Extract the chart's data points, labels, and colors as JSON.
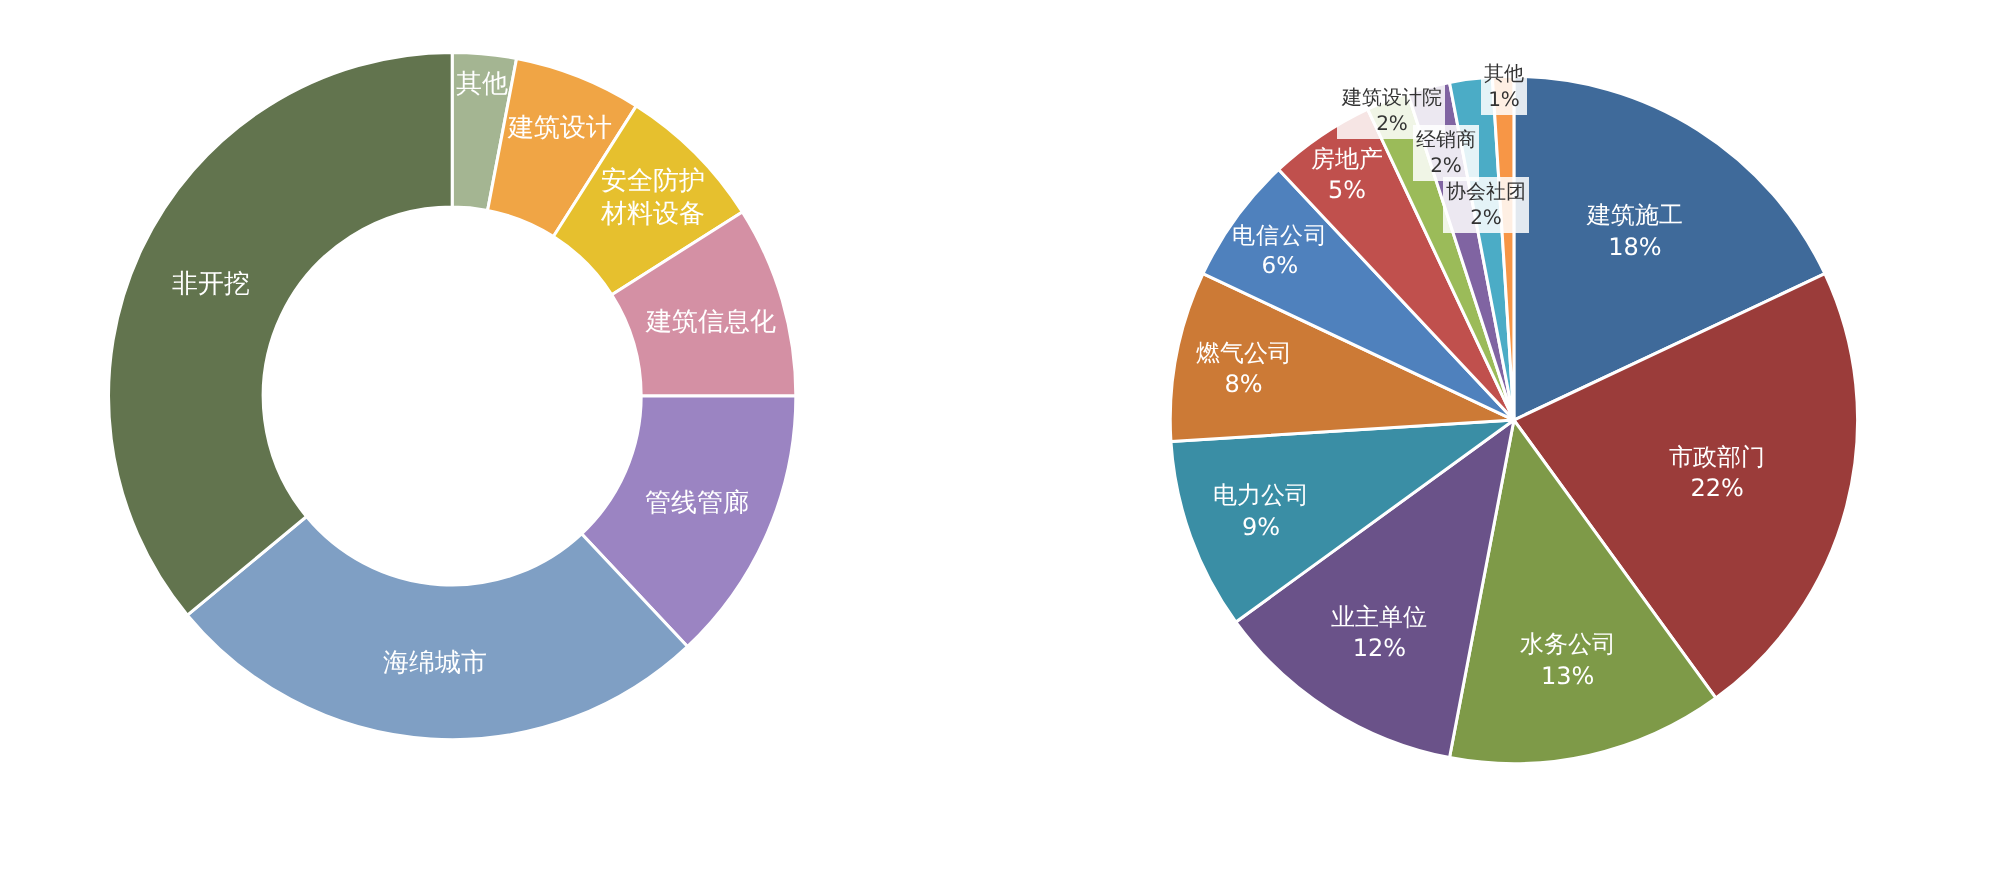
{
  "chart_data": [
    {
      "type": "donut",
      "categories": [
        "其他",
        "建筑设计",
        "安全防护材料设备",
        "建筑信息化",
        "管线管廊",
        "海绵城市",
        "非开挖"
      ],
      "values": [
        3,
        6,
        7,
        9,
        13,
        26,
        36
      ],
      "colors": [
        "#a4b592",
        "#f0a545",
        "#e6c02e",
        "#d490a4",
        "#9b84c2",
        "#7f9fc4",
        "#62744e"
      ],
      "legend": false
    },
    {
      "type": "pie",
      "categories": [
        "建筑施工",
        "市政部门",
        "水务公司",
        "业主单位",
        "电力公司",
        "燃气公司",
        "电信公司",
        "房地产",
        "建筑设计院",
        "经销商",
        "协会社团",
        "其他"
      ],
      "values": [
        18,
        22,
        13,
        12,
        9,
        8,
        6,
        5,
        2,
        2,
        2,
        1
      ],
      "value_labels": [
        "18%",
        "22%",
        "13%",
        "12%",
        "9%",
        "8%",
        "6%",
        "5%",
        "2%",
        "2%",
        "2%",
        "1%"
      ],
      "colors": [
        "#3f6a9a",
        "#9b3c3a",
        "#7e9a48",
        "#6a5289",
        "#3a8ea5",
        "#cc7a36",
        "#4f81bd",
        "#c0504d",
        "#9bbb59",
        "#8064a2",
        "#4bacc6",
        "#f79646"
      ],
      "legend": false
    }
  ]
}
